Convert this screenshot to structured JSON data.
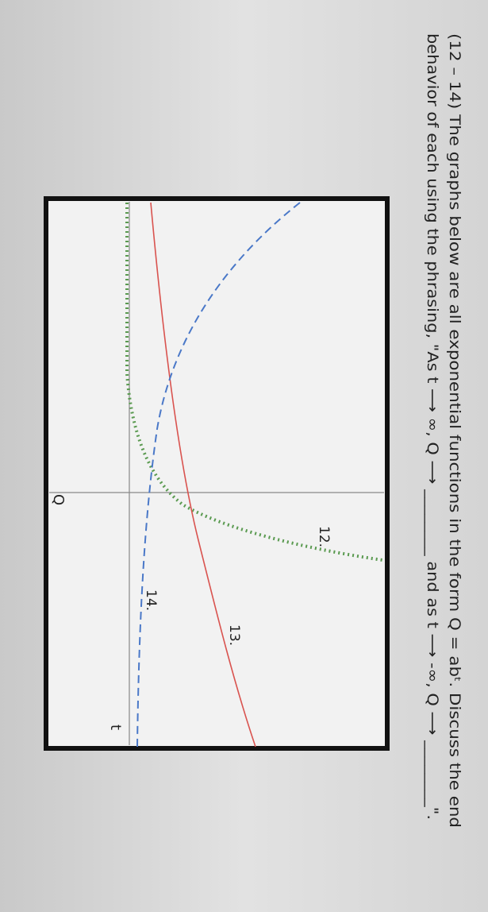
{
  "question": {
    "line1": "(12 – 14) The graphs below are all exponential functions in the form Q = abᵗ. Discuss the end",
    "line2": "behavior of each using the phrasing, \"As t ⟶ ∞, Q ⟶ ________ and as t ⟶ -∞, Q ⟶ ________\"."
  },
  "graph": {
    "labels": [
      "12.",
      "13.",
      "14."
    ],
    "q_axis": "Q",
    "t_axis": "t"
  }
}
